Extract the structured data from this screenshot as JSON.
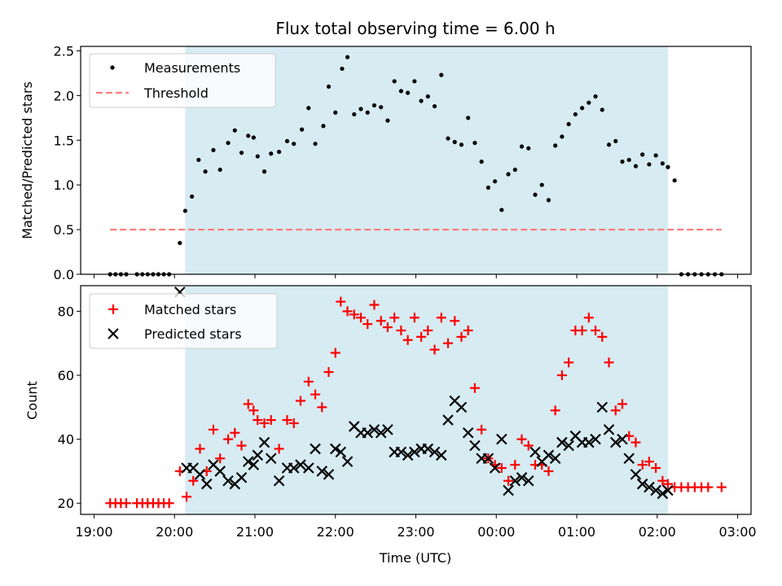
{
  "chart_data": [
    {
      "type": "scatter",
      "title": "Flux total observing time = 6.00 h",
      "xlabel": "",
      "ylabel": "Matched/Predicted stars",
      "xlim": [
        "18:50",
        "03:10"
      ],
      "ylim": [
        0,
        2.55
      ],
      "yticks": [
        0.0,
        0.5,
        1.0,
        1.5,
        2.0,
        2.5
      ],
      "ytick_labels": [
        "0.0",
        "0.5",
        "1.0",
        "1.5",
        "2.0",
        "2.5"
      ],
      "shaded_span": [
        "20:08",
        "02:08"
      ],
      "grid": false,
      "legend": "upper left",
      "threshold": {
        "name": "Threshold",
        "value": 0.5,
        "x_start": "19:12",
        "x_end": "02:48",
        "color": "#ff7f7f"
      },
      "series": [
        {
          "name": "Measurements",
          "marker": "dot",
          "color": "#000000",
          "points": [
            [
              "19:12",
              0
            ],
            [
              "19:16",
              0
            ],
            [
              "19:20",
              0
            ],
            [
              "19:24",
              0
            ],
            [
              "19:32",
              0
            ],
            [
              "19:36",
              0
            ],
            [
              "19:40",
              0
            ],
            [
              "19:44",
              0
            ],
            [
              "19:48",
              0
            ],
            [
              "19:52",
              0
            ],
            [
              "19:56",
              0
            ],
            [
              "20:04",
              0.35
            ],
            [
              "20:08",
              0.71
            ],
            [
              "20:13",
              0.87
            ],
            [
              "20:18",
              1.28
            ],
            [
              "20:23",
              1.15
            ],
            [
              "20:29",
              1.39
            ],
            [
              "20:34",
              1.17
            ],
            [
              "20:40",
              1.47
            ],
            [
              "20:45",
              1.61
            ],
            [
              "20:50",
              1.36
            ],
            [
              "20:55",
              1.55
            ],
            [
              "20:59",
              1.53
            ],
            [
              "21:02",
              1.32
            ],
            [
              "21:07",
              1.15
            ],
            [
              "21:12",
              1.35
            ],
            [
              "21:18",
              1.37
            ],
            [
              "21:24",
              1.49
            ],
            [
              "21:29",
              1.46
            ],
            [
              "21:35",
              1.62
            ],
            [
              "21:40",
              1.86
            ],
            [
              "21:45",
              1.46
            ],
            [
              "21:51",
              1.66
            ],
            [
              "21:55",
              2.1
            ],
            [
              "22:00",
              1.81
            ],
            [
              "22:05",
              2.3
            ],
            [
              "22:09",
              2.43
            ],
            [
              "22:14",
              1.79
            ],
            [
              "22:19",
              1.85
            ],
            [
              "22:24",
              1.81
            ],
            [
              "22:29",
              1.89
            ],
            [
              "22:34",
              1.87
            ],
            [
              "22:39",
              1.72
            ],
            [
              "22:44",
              2.16
            ],
            [
              "22:49",
              2.05
            ],
            [
              "22:54",
              2.03
            ],
            [
              "22:59",
              2.16
            ],
            [
              "23:04",
              1.94
            ],
            [
              "23:09",
              1.99
            ],
            [
              "23:14",
              1.88
            ],
            [
              "23:19",
              2.23
            ],
            [
              "23:24",
              1.52
            ],
            [
              "23:29",
              1.48
            ],
            [
              "23:34",
              1.45
            ],
            [
              "23:39",
              1.75
            ],
            [
              "23:44",
              1.47
            ],
            [
              "23:49",
              1.26
            ],
            [
              "23:54",
              0.97
            ],
            [
              "23:59",
              1.04
            ],
            [
              "00:04",
              0.72
            ],
            [
              "00:09",
              1.12
            ],
            [
              "00:14",
              1.17
            ],
            [
              "00:19",
              1.43
            ],
            [
              "00:24",
              1.41
            ],
            [
              "00:29",
              0.89
            ],
            [
              "00:34",
              1.0
            ],
            [
              "00:39",
              0.83
            ],
            [
              "00:44",
              1.44
            ],
            [
              "00:49",
              1.54
            ],
            [
              "00:54",
              1.68
            ],
            [
              "00:59",
              1.79
            ],
            [
              "01:04",
              1.86
            ],
            [
              "01:09",
              1.92
            ],
            [
              "01:14",
              1.99
            ],
            [
              "01:19",
              1.84
            ],
            [
              "01:24",
              1.45
            ],
            [
              "01:29",
              1.49
            ],
            [
              "01:34",
              1.26
            ],
            [
              "01:39",
              1.28
            ],
            [
              "01:44",
              1.21
            ],
            [
              "01:49",
              1.34
            ],
            [
              "01:54",
              1.23
            ],
            [
              "01:59",
              1.33
            ],
            [
              "02:04",
              1.24
            ],
            [
              "02:08",
              1.2
            ],
            [
              "02:13",
              1.05
            ],
            [
              "02:18",
              0
            ],
            [
              "02:23",
              0
            ],
            [
              "02:28",
              0
            ],
            [
              "02:33",
              0
            ],
            [
              "02:38",
              0
            ],
            [
              "02:43",
              0
            ],
            [
              "02:48",
              0
            ]
          ]
        }
      ]
    },
    {
      "type": "scatter",
      "title": "",
      "xlabel": "Time (UTC)",
      "ylabel": "Count",
      "xlim": [
        "18:50",
        "03:10"
      ],
      "xticks": [
        "19:00",
        "20:00",
        "21:00",
        "22:00",
        "23:00",
        "00:00",
        "01:00",
        "02:00",
        "03:00"
      ],
      "ylim": [
        16.5,
        88
      ],
      "yticks": [
        20,
        40,
        60,
        80
      ],
      "ytick_labels": [
        "20",
        "40",
        "60",
        "80"
      ],
      "shaded_span": [
        "20:08",
        "02:08"
      ],
      "grid": false,
      "legend": "upper left",
      "series": [
        {
          "name": "Matched stars",
          "marker": "plus",
          "color": "#ff0000",
          "points": [
            [
              "19:12",
              20
            ],
            [
              "19:16",
              20
            ],
            [
              "19:20",
              20
            ],
            [
              "19:24",
              20
            ],
            [
              "19:32",
              20
            ],
            [
              "19:36",
              20
            ],
            [
              "19:40",
              20
            ],
            [
              "19:44",
              20
            ],
            [
              "19:48",
              20
            ],
            [
              "19:52",
              20
            ],
            [
              "19:56",
              20
            ],
            [
              "20:04",
              30
            ],
            [
              "20:09",
              22
            ],
            [
              "20:14",
              27
            ],
            [
              "20:19",
              37
            ],
            [
              "20:24",
              30
            ],
            [
              "20:29",
              43
            ],
            [
              "20:34",
              34
            ],
            [
              "20:40",
              40
            ],
            [
              "20:45",
              42
            ],
            [
              "20:50",
              38
            ],
            [
              "20:55",
              51
            ],
            [
              "20:59",
              49
            ],
            [
              "21:02",
              46
            ],
            [
              "21:07",
              45
            ],
            [
              "21:12",
              46
            ],
            [
              "21:18",
              37
            ],
            [
              "21:24",
              46
            ],
            [
              "21:29",
              45
            ],
            [
              "21:34",
              52
            ],
            [
              "21:40",
              58
            ],
            [
              "21:45",
              54
            ],
            [
              "21:50",
              50
            ],
            [
              "21:55",
              61
            ],
            [
              "22:00",
              67
            ],
            [
              "22:04",
              83
            ],
            [
              "22:09",
              80
            ],
            [
              "22:14",
              79
            ],
            [
              "22:19",
              78
            ],
            [
              "22:24",
              76
            ],
            [
              "22:29",
              82
            ],
            [
              "22:34",
              77
            ],
            [
              "22:39",
              75
            ],
            [
              "22:44",
              78
            ],
            [
              "22:49",
              74
            ],
            [
              "22:54",
              71
            ],
            [
              "22:59",
              78
            ],
            [
              "23:04",
              72
            ],
            [
              "23:09",
              74
            ],
            [
              "23:14",
              68
            ],
            [
              "23:19",
              78
            ],
            [
              "23:24",
              70
            ],
            [
              "23:29",
              77
            ],
            [
              "23:34",
              72
            ],
            [
              "23:39",
              74
            ],
            [
              "23:44",
              56
            ],
            [
              "23:49",
              43
            ],
            [
              "23:54",
              34
            ],
            [
              "23:59",
              32
            ],
            [
              "00:04",
              31
            ],
            [
              "00:09",
              27
            ],
            [
              "00:14",
              32
            ],
            [
              "00:19",
              40
            ],
            [
              "00:24",
              38
            ],
            [
              "00:29",
              32
            ],
            [
              "00:34",
              32
            ],
            [
              "00:39",
              30
            ],
            [
              "00:44",
              49
            ],
            [
              "00:49",
              60
            ],
            [
              "00:54",
              64
            ],
            [
              "00:59",
              74
            ],
            [
              "01:04",
              74
            ],
            [
              "01:09",
              78
            ],
            [
              "01:14",
              74
            ],
            [
              "01:19",
              72
            ],
            [
              "01:24",
              64
            ],
            [
              "01:29",
              49
            ],
            [
              "01:34",
              51
            ],
            [
              "01:39",
              41
            ],
            [
              "01:44",
              39
            ],
            [
              "01:49",
              32
            ],
            [
              "01:54",
              33
            ],
            [
              "01:59",
              31
            ],
            [
              "02:04",
              27
            ],
            [
              "02:08",
              26
            ],
            [
              "02:13",
              25
            ],
            [
              "02:18",
              25
            ],
            [
              "02:23",
              25
            ],
            [
              "02:28",
              25
            ],
            [
              "02:33",
              25
            ],
            [
              "02:38",
              25
            ],
            [
              "02:48",
              25
            ]
          ]
        },
        {
          "name": "Predicted stars",
          "marker": "x",
          "color": "#000000",
          "points": [
            [
              "20:04",
              86
            ],
            [
              "20:09",
              31
            ],
            [
              "20:14",
              31
            ],
            [
              "20:19",
              29
            ],
            [
              "20:24",
              26
            ],
            [
              "20:29",
              32
            ],
            [
              "20:34",
              30
            ],
            [
              "20:40",
              27
            ],
            [
              "20:45",
              26
            ],
            [
              "20:50",
              28
            ],
            [
              "20:55",
              33
            ],
            [
              "20:59",
              32
            ],
            [
              "21:02",
              35
            ],
            [
              "21:07",
              39
            ],
            [
              "21:12",
              34
            ],
            [
              "21:18",
              27
            ],
            [
              "21:24",
              31
            ],
            [
              "21:29",
              31
            ],
            [
              "21:34",
              32
            ],
            [
              "21:40",
              31
            ],
            [
              "21:45",
              37
            ],
            [
              "21:50",
              30
            ],
            [
              "21:55",
              29
            ],
            [
              "22:00",
              37
            ],
            [
              "22:04",
              36
            ],
            [
              "22:09",
              33
            ],
            [
              "22:14",
              44
            ],
            [
              "22:19",
              42
            ],
            [
              "22:24",
              42
            ],
            [
              "22:29",
              43
            ],
            [
              "22:34",
              42
            ],
            [
              "22:39",
              43
            ],
            [
              "22:44",
              36
            ],
            [
              "22:49",
              36
            ],
            [
              "22:54",
              35
            ],
            [
              "22:59",
              36
            ],
            [
              "23:04",
              37
            ],
            [
              "23:09",
              37
            ],
            [
              "23:14",
              36
            ],
            [
              "23:19",
              35
            ],
            [
              "23:24",
              46
            ],
            [
              "23:29",
              52
            ],
            [
              "23:34",
              50
            ],
            [
              "23:39",
              42
            ],
            [
              "23:44",
              38
            ],
            [
              "23:49",
              34
            ],
            [
              "23:54",
              34
            ],
            [
              "23:59",
              31
            ],
            [
              "00:04",
              40
            ],
            [
              "00:09",
              24
            ],
            [
              "00:14",
              27
            ],
            [
              "00:19",
              28
            ],
            [
              "00:24",
              27
            ],
            [
              "00:29",
              36
            ],
            [
              "00:34",
              33
            ],
            [
              "00:39",
              35
            ],
            [
              "00:44",
              34
            ],
            [
              "00:49",
              39
            ],
            [
              "00:54",
              38
            ],
            [
              "00:59",
              41
            ],
            [
              "01:04",
              39
            ],
            [
              "01:09",
              39
            ],
            [
              "01:14",
              40
            ],
            [
              "01:19",
              50
            ],
            [
              "01:24",
              43
            ],
            [
              "01:29",
              39
            ],
            [
              "01:34",
              40
            ],
            [
              "01:39",
              34
            ],
            [
              "01:44",
              29
            ],
            [
              "01:49",
              26
            ],
            [
              "01:54",
              25
            ],
            [
              "01:59",
              24
            ],
            [
              "02:04",
              23
            ],
            [
              "02:08",
              24
            ]
          ]
        }
      ]
    }
  ]
}
